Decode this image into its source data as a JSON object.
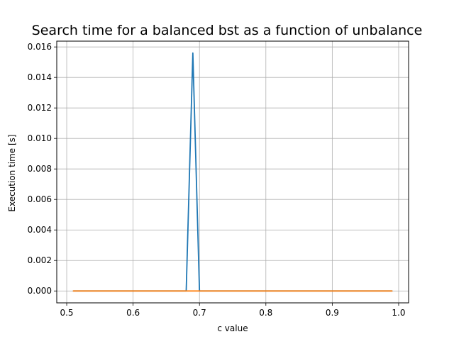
{
  "chart_data": {
    "type": "line",
    "title": "Search time for a balanced bst as a function of unbalance",
    "xlabel": "c value",
    "ylabel": "Execution time [s]",
    "xlim": [
      0.485,
      1.015
    ],
    "ylim": [
      -0.00078,
      0.01638
    ],
    "xticks": [
      0.5,
      0.6,
      0.7,
      0.8,
      0.9,
      1.0
    ],
    "xtick_labels": [
      "0.5",
      "0.6",
      "0.7",
      "0.8",
      "0.9",
      "1.0"
    ],
    "yticks": [
      0.0,
      0.002,
      0.004,
      0.006,
      0.008,
      0.01,
      0.012,
      0.014,
      0.016
    ],
    "ytick_labels": [
      "0.000",
      "0.002",
      "0.004",
      "0.006",
      "0.008",
      "0.010",
      "0.012",
      "0.014",
      "0.016"
    ],
    "grid": true,
    "legend": "none",
    "series": [
      {
        "color": "#1f77b4",
        "x": [
          0.51,
          0.52,
          0.53,
          0.54,
          0.55,
          0.56,
          0.57,
          0.58,
          0.59,
          0.6,
          0.61,
          0.62,
          0.63,
          0.64,
          0.65,
          0.66,
          0.67,
          0.68,
          0.69,
          0.7,
          0.71,
          0.72,
          0.73,
          0.74,
          0.75,
          0.76,
          0.77,
          0.78,
          0.79,
          0.8,
          0.81,
          0.82,
          0.83,
          0.84,
          0.85,
          0.86,
          0.87,
          0.88,
          0.89,
          0.9,
          0.91,
          0.92,
          0.93,
          0.94,
          0.95,
          0.96,
          0.97,
          0.98,
          0.99
        ],
        "y": [
          0,
          0,
          0,
          0,
          0,
          0,
          0,
          0,
          0,
          0,
          0,
          0,
          0,
          0,
          0,
          0,
          0,
          0,
          0.0156,
          0,
          0,
          0,
          0,
          0,
          0,
          0,
          0,
          0,
          0,
          0,
          0,
          0,
          0,
          0,
          0,
          0,
          0,
          0,
          0,
          0,
          0,
          0,
          0,
          0,
          0,
          0,
          0,
          0,
          0
        ]
      },
      {
        "color": "#ff7f0e",
        "x": [
          0.51,
          0.99
        ],
        "y": [
          0,
          0
        ]
      }
    ]
  }
}
